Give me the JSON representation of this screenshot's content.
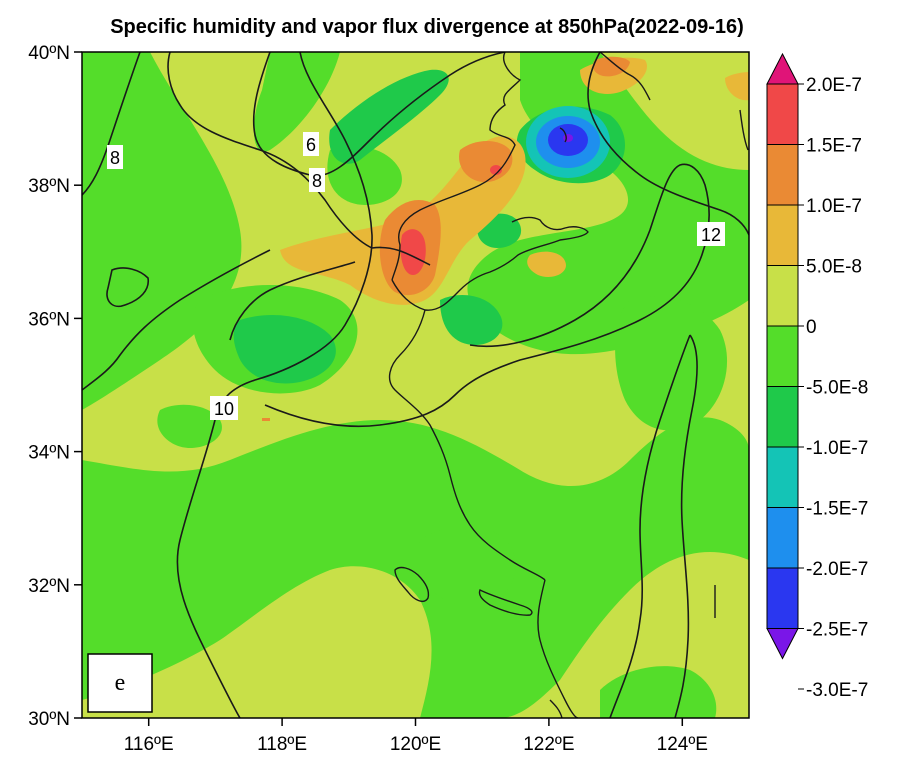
{
  "title": "Specific humidity and vapor flux divergence at 850hPa(2022-09-16)",
  "panel_label": "e",
  "colors": {
    "c_m30": "#7a16e8",
    "c_m25": "#2a37f0",
    "c_m20": "#1e8fee",
    "c_m15": "#14c4b6",
    "c_m10": "#1fc94a",
    "c_m05": "#54dd2a",
    "c_00": "#c8e048",
    "c_05": "#e8b838",
    "c_10": "#ea8a34",
    "c_15": "#f04848",
    "c_20": "#e01478"
  },
  "chart_data": {
    "type": "map",
    "title": "Specific humidity and vapor flux divergence at 850hPa(2022-09-16)",
    "lon_range": [
      115,
      125
    ],
    "lat_range": [
      30,
      40
    ],
    "x_ticks": [
      {
        "value": 116,
        "label": "116ºE"
      },
      {
        "value": 118,
        "label": "118ºE"
      },
      {
        "value": 120,
        "label": "120ºE"
      },
      {
        "value": 122,
        "label": "122ºE"
      },
      {
        "value": 124,
        "label": "124ºE"
      }
    ],
    "y_ticks": [
      {
        "value": 30,
        "label": "30ºN"
      },
      {
        "value": 32,
        "label": "32ºN"
      },
      {
        "value": 34,
        "label": "34ºN"
      },
      {
        "value": 36,
        "label": "36ºN"
      },
      {
        "value": 38,
        "label": "38ºN"
      },
      {
        "value": 40,
        "label": "40ºN"
      }
    ],
    "shading_variable": "vapor flux divergence",
    "colorbar": {
      "levels": [
        "2.0E-7",
        "1.5E-7",
        "1.0E-7",
        "5.0E-8",
        "0",
        "-5.0E-8",
        "-1.0E-7",
        "-1.5E-7",
        "-2.0E-7",
        "-2.5E-7",
        "-3.0E-7"
      ],
      "colors": [
        "#e01478",
        "#f04848",
        "#ea8a34",
        "#e8b838",
        "#c8e048",
        "#54dd2a",
        "#1fc94a",
        "#14c4b6",
        "#1e8fee",
        "#2a37f0",
        "#7a16e8"
      ]
    },
    "contour_variable": "specific humidity",
    "contour_labels": [
      {
        "text": "6",
        "lon": 118.4,
        "lat": 38.6
      },
      {
        "text": "8",
        "lon": 115.5,
        "lat": 38.4
      },
      {
        "text": "8",
        "lon": 118.5,
        "lat": 38.1
      },
      {
        "text": "10",
        "lon": 117.1,
        "lat": 34.6
      },
      {
        "text": "12",
        "lon": 124.4,
        "lat": 37.2
      }
    ],
    "features": [
      {
        "name": "negative divergence maximum",
        "lon": 122.3,
        "lat": 38.7,
        "approx_value": "-3.0E-7"
      },
      {
        "name": "positive divergence maximum",
        "lon": 119.9,
        "lat": 37.1,
        "approx_value": "1.5E-7"
      }
    ]
  }
}
